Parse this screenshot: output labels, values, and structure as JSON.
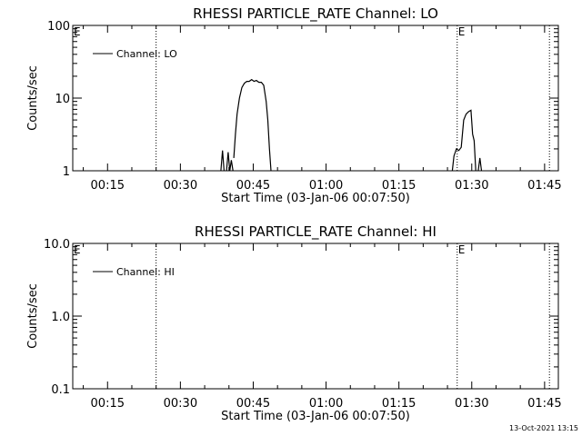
{
  "footer": {
    "timestamp": "13-Oct-2021 13:15"
  },
  "chart_data": [
    {
      "type": "line",
      "title": "RHESSI PARTICLE_RATE Channel: LO",
      "xlabel": "Start Time (03-Jan-06 00:07:50)",
      "ylabel": "Counts/sec",
      "yscale": "log",
      "xlim": [
        "00:07:50",
        "01:47:50"
      ],
      "ylim": [
        1,
        100
      ],
      "x_ticks": [
        "00:15",
        "00:30",
        "00:45",
        "01:00",
        "01:15",
        "01:30",
        "01:45"
      ],
      "y_ticks": [
        "1",
        "10",
        "100"
      ],
      "grid": false,
      "legend": {
        "position": "top-left",
        "entries": [
          "Channel: LO"
        ]
      },
      "markers": [
        {
          "time": "00:25:00",
          "label": ""
        },
        {
          "time": "01:27:00",
          "label": "E"
        },
        {
          "time": "01:46:00",
          "label": ""
        }
      ],
      "edge_labels": [
        {
          "text": "E",
          "position": "left"
        }
      ],
      "series": [
        {
          "name": "Channel: LO",
          "segments": [
            [
              [
                "00:38:20",
                1.0
              ],
              [
                "00:38:40",
                1.9
              ],
              [
                "00:39:00",
                1.0
              ]
            ],
            [
              [
                "00:39:30",
                1.0
              ],
              [
                "00:39:50",
                1.8
              ],
              [
                "00:40:10",
                1.0
              ],
              [
                "00:40:30",
                1.4
              ],
              [
                "00:40:50",
                1.0
              ]
            ],
            [
              [
                "00:41:00",
                1.5
              ],
              [
                "00:41:20",
                3.2
              ],
              [
                "00:41:40",
                6.0
              ],
              [
                "00:42:10",
                10.0
              ],
              [
                "00:42:40",
                14.0
              ],
              [
                "00:43:10",
                16.0
              ],
              [
                "00:43:40",
                17.0
              ],
              [
                "00:44:10",
                17.0
              ],
              [
                "00:44:40",
                18.0
              ],
              [
                "00:45:10",
                17.0
              ],
              [
                "00:45:40",
                17.5
              ],
              [
                "00:46:10",
                16.5
              ],
              [
                "00:46:40",
                16.5
              ],
              [
                "00:47:10",
                15.0
              ],
              [
                "00:47:40",
                9.0
              ],
              [
                "00:48:00",
                5.0
              ],
              [
                "00:48:20",
                2.0
              ],
              [
                "00:48:40",
                1.0
              ]
            ],
            [
              [
                "01:26:00",
                1.0
              ],
              [
                "01:26:20",
                1.6
              ],
              [
                "01:26:50",
                2.0
              ],
              [
                "01:27:20",
                1.9
              ],
              [
                "01:27:50",
                2.1
              ],
              [
                "01:28:20",
                5.0
              ],
              [
                "01:28:50",
                6.0
              ],
              [
                "01:29:20",
                6.5
              ],
              [
                "01:29:50",
                6.8
              ],
              [
                "01:30:10",
                3.2
              ],
              [
                "01:30:30",
                2.6
              ],
              [
                "01:30:50",
                1.0
              ]
            ],
            [
              [
                "01:31:20",
                1.0
              ],
              [
                "01:31:40",
                1.5
              ],
              [
                "01:32:00",
                1.0
              ]
            ]
          ]
        }
      ]
    },
    {
      "type": "line",
      "title": "RHESSI PARTICLE_RATE Channel: HI",
      "xlabel": "Start Time (03-Jan-06 00:07:50)",
      "ylabel": "Counts/sec",
      "yscale": "log",
      "xlim": [
        "00:07:50",
        "01:47:50"
      ],
      "ylim": [
        0.1,
        10
      ],
      "x_ticks": [
        "00:15",
        "00:30",
        "00:45",
        "01:00",
        "01:15",
        "01:30",
        "01:45"
      ],
      "y_ticks": [
        "0.1",
        "1.0",
        "10.0"
      ],
      "grid": false,
      "legend": {
        "position": "top-left",
        "entries": [
          "Channel: HI"
        ]
      },
      "markers": [
        {
          "time": "00:25:00",
          "label": ""
        },
        {
          "time": "01:27:00",
          "label": "E"
        },
        {
          "time": "01:46:00",
          "label": ""
        }
      ],
      "edge_labels": [
        {
          "text": "E",
          "position": "left"
        }
      ],
      "series": [
        {
          "name": "Channel: HI",
          "segments": []
        }
      ]
    }
  ]
}
